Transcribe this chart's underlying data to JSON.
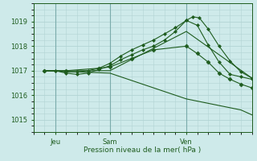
{
  "title": "Pression niveau de la mer( hPa )",
  "ylabel_ticks": [
    1015,
    1016,
    1017,
    1018,
    1019
  ],
  "ylim": [
    1014.6,
    1019.6
  ],
  "xlim": [
    0,
    10.0
  ],
  "xtick_positions": [
    1.0,
    3.5,
    7.0
  ],
  "xtick_labels": [
    "Jeu",
    "Sam",
    "Ven"
  ],
  "vlines": [
    1.0,
    3.5,
    7.0
  ],
  "background_color": "#ceeaea",
  "grid_color": "#b2d4d4",
  "line_color": "#1e5c1e",
  "series": [
    {
      "x": [
        0.5,
        1.0,
        1.5,
        2.0,
        2.5,
        3.0,
        3.5,
        4.0,
        4.5,
        5.0,
        5.5,
        6.0,
        6.5,
        7.0,
        7.3,
        7.6,
        8.0,
        8.5,
        9.0,
        9.5,
        10.0
      ],
      "y": [
        1017.0,
        1017.0,
        1016.95,
        1016.95,
        1017.0,
        1017.1,
        1017.3,
        1017.6,
        1017.85,
        1018.05,
        1018.25,
        1018.5,
        1018.75,
        1019.05,
        1019.2,
        1019.15,
        1018.7,
        1018.0,
        1017.4,
        1016.95,
        1016.7
      ]
    },
    {
      "x": [
        0.5,
        1.0,
        1.5,
        2.0,
        2.5,
        3.0,
        3.5,
        4.0,
        4.5,
        5.0,
        5.5,
        6.0,
        6.5,
        7.0,
        7.5,
        8.0,
        8.5,
        9.0,
        9.5,
        10.0
      ],
      "y": [
        1017.0,
        1017.0,
        1016.9,
        1016.85,
        1016.9,
        1017.05,
        1017.2,
        1017.45,
        1017.65,
        1017.85,
        1018.0,
        1018.25,
        1018.6,
        1019.05,
        1018.85,
        1018.05,
        1017.35,
        1016.85,
        1016.75,
        1016.65
      ]
    },
    {
      "x": [
        0.5,
        3.5,
        7.0,
        10.0
      ],
      "y": [
        1017.0,
        1017.0,
        1018.6,
        1016.7
      ]
    },
    {
      "x": [
        0.5,
        1.5,
        3.0,
        3.5,
        4.5,
        5.5,
        7.0,
        7.5,
        8.0,
        8.5,
        9.0,
        9.5,
        10.0
      ],
      "y": [
        1017.0,
        1017.0,
        1017.1,
        1017.15,
        1017.5,
        1017.85,
        1018.0,
        1017.7,
        1017.35,
        1016.9,
        1016.65,
        1016.45,
        1016.3
      ]
    },
    {
      "x": [
        0.5,
        3.5,
        7.0,
        9.5,
        10.0
      ],
      "y": [
        1017.0,
        1016.9,
        1015.85,
        1015.4,
        1015.2
      ]
    }
  ]
}
